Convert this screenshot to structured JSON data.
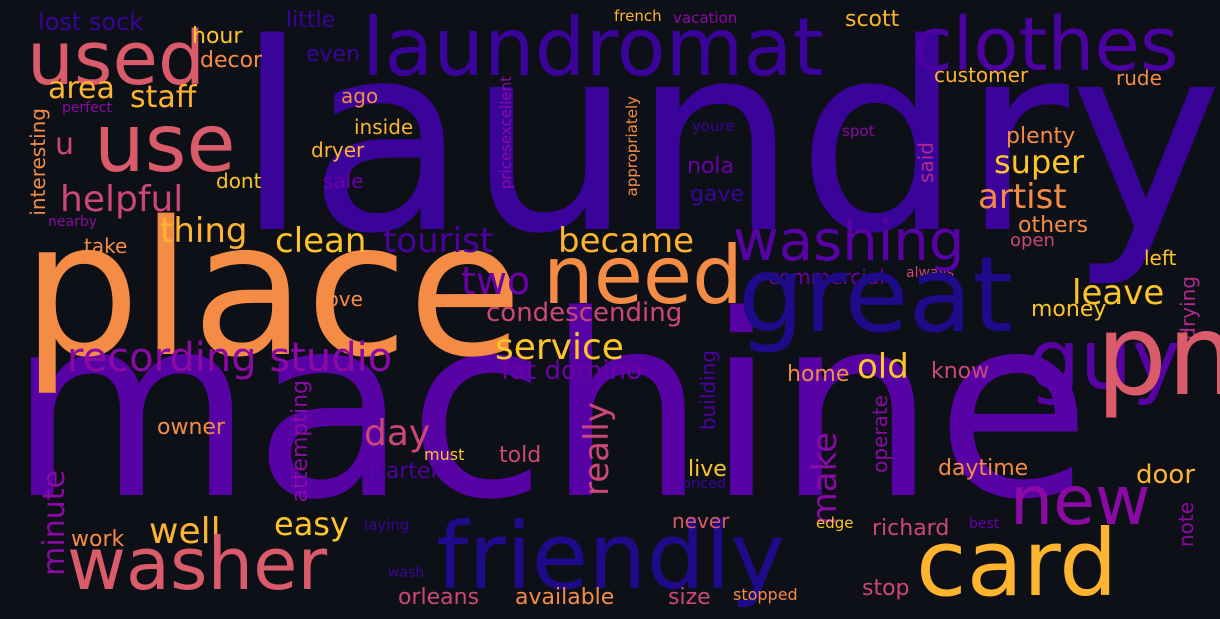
{
  "background": "#0e1018",
  "words": [
    {
      "text": "laundry",
      "color": "#3a049a"
    },
    {
      "text": "machine",
      "color": "#5602a4"
    },
    {
      "text": "place",
      "color": "#f58c46"
    },
    {
      "text": "laundromat",
      "color": "#3a049a"
    },
    {
      "text": "clothes",
      "color": "#4c02a1"
    },
    {
      "text": "used",
      "color": "#da5b69"
    },
    {
      "text": "use",
      "color": "#da5b69"
    },
    {
      "text": "area",
      "color": "#fdb42f"
    },
    {
      "text": "staff",
      "color": "#fdb42f"
    },
    {
      "text": "lost sock",
      "color": "#3a049a"
    },
    {
      "text": "hour",
      "color": "#fdc527"
    },
    {
      "text": "decor",
      "color": "#f58c46"
    },
    {
      "text": "little",
      "color": "#3a049a"
    },
    {
      "text": "even",
      "color": "#3a049a"
    },
    {
      "text": "french",
      "color": "#fdb42f"
    },
    {
      "text": "vacation",
      "color": "#8b0aa5"
    },
    {
      "text": "scott",
      "color": "#fdb42f"
    },
    {
      "text": "customer",
      "color": "#fdb42f"
    },
    {
      "text": "rude",
      "color": "#f58c46"
    },
    {
      "text": "perfect",
      "color": "#8b0aa5"
    },
    {
      "text": "interesting",
      "color": "#f58c46"
    },
    {
      "text": "nearby",
      "color": "#8b0aa5"
    },
    {
      "text": "u",
      "color": "#cc4778"
    },
    {
      "text": "helpful",
      "color": "#cc4778"
    },
    {
      "text": "take",
      "color": "#f58c46"
    },
    {
      "text": "thing",
      "color": "#fdb42f"
    },
    {
      "text": "ago",
      "color": "#f58c46"
    },
    {
      "text": "inside",
      "color": "#fdb42f"
    },
    {
      "text": "dryer",
      "color": "#fdb42f"
    },
    {
      "text": "dont",
      "color": "#fdc527"
    },
    {
      "text": "sale",
      "color": "#6a00a8"
    },
    {
      "text": "pricesexcellent",
      "color": "#8b0aa5"
    },
    {
      "text": "appropriately",
      "color": "#f58c46"
    },
    {
      "text": "youre",
      "color": "#3a049a"
    },
    {
      "text": "spot",
      "color": "#8b0aa5"
    },
    {
      "text": "plenty",
      "color": "#f58c46"
    },
    {
      "text": "super",
      "color": "#fdc527"
    },
    {
      "text": "artist",
      "color": "#f58c46"
    },
    {
      "text": "said",
      "color": "#b12a90"
    },
    {
      "text": "nola",
      "color": "#6a00a8"
    },
    {
      "text": "gave",
      "color": "#3a049a"
    },
    {
      "text": "others",
      "color": "#f58c46"
    },
    {
      "text": "open",
      "color": "#cc4778"
    },
    {
      "text": "left",
      "color": "#fdc527"
    },
    {
      "text": "always",
      "color": "#cc4778"
    },
    {
      "text": "commercial",
      "color": "#6a00a8"
    },
    {
      "text": "washing",
      "color": "#5602a4"
    },
    {
      "text": "great",
      "color": "#1f0b8a"
    },
    {
      "text": "need",
      "color": "#f58c46"
    },
    {
      "text": "clean",
      "color": "#fdc527"
    },
    {
      "text": "tourist",
      "color": "#4c02a1"
    },
    {
      "text": "became",
      "color": "#fdb42f"
    },
    {
      "text": "two",
      "color": "#6a00a8"
    },
    {
      "text": "recording studio",
      "color": "#8b0aa5"
    },
    {
      "text": "love",
      "color": "#f58c46"
    },
    {
      "text": "condescending",
      "color": "#cc4778"
    },
    {
      "text": "service",
      "color": "#fdc527"
    },
    {
      "text": "fat domino",
      "color": "#6a00a8"
    },
    {
      "text": "leave",
      "color": "#fdc527"
    },
    {
      "text": "money",
      "color": "#fdc527"
    },
    {
      "text": "drying",
      "color": "#b12a90"
    },
    {
      "text": "guy",
      "color": "#5602a4"
    },
    {
      "text": "pm",
      "color": "#da5b69"
    },
    {
      "text": "new",
      "color": "#8b0aa5"
    },
    {
      "text": "old",
      "color": "#fdc527"
    },
    {
      "text": "home",
      "color": "#f58c46"
    },
    {
      "text": "know",
      "color": "#cc4778"
    },
    {
      "text": "building",
      "color": "#4c02a1"
    },
    {
      "text": "operate",
      "color": "#8b0aa5"
    },
    {
      "text": "really",
      "color": "#cc4778"
    },
    {
      "text": "day",
      "color": "#cc4778"
    },
    {
      "text": "make",
      "color": "#8b0aa5"
    },
    {
      "text": "owner",
      "color": "#f58c46"
    },
    {
      "text": "attempting",
      "color": "#8b0aa5"
    },
    {
      "text": "must",
      "color": "#fdc527"
    },
    {
      "text": "told",
      "color": "#cc4778"
    },
    {
      "text": "quarter",
      "color": "#4c02a1"
    },
    {
      "text": "minute",
      "color": "#8b0aa5"
    },
    {
      "text": "well",
      "color": "#fdb42f"
    },
    {
      "text": "easy",
      "color": "#fdc527"
    },
    {
      "text": "work",
      "color": "#f58c46"
    },
    {
      "text": "washer",
      "color": "#da5b69"
    },
    {
      "text": "friendly",
      "color": "#1f0b8a"
    },
    {
      "text": "card",
      "color": "#fdb42f"
    },
    {
      "text": "live",
      "color": "#fdc527"
    },
    {
      "text": "priced",
      "color": "#3a049a"
    },
    {
      "text": "never",
      "color": "#da5b69"
    },
    {
      "text": "daytime",
      "color": "#f58c46"
    },
    {
      "text": "door",
      "color": "#fdb42f"
    },
    {
      "text": "edge",
      "color": "#fdc527"
    },
    {
      "text": "richard",
      "color": "#cc4778"
    },
    {
      "text": "best",
      "color": "#6a00a8"
    },
    {
      "text": "note",
      "color": "#8b0aa5"
    },
    {
      "text": "laying",
      "color": "#3a049a"
    },
    {
      "text": "wash",
      "color": "#3a049a"
    },
    {
      "text": "orleans",
      "color": "#cc4778"
    },
    {
      "text": "available",
      "color": "#f58c46"
    },
    {
      "text": "size",
      "color": "#cc4778"
    },
    {
      "text": "stopped",
      "color": "#f58c46"
    },
    {
      "text": "stop",
      "color": "#cc4778"
    }
  ]
}
